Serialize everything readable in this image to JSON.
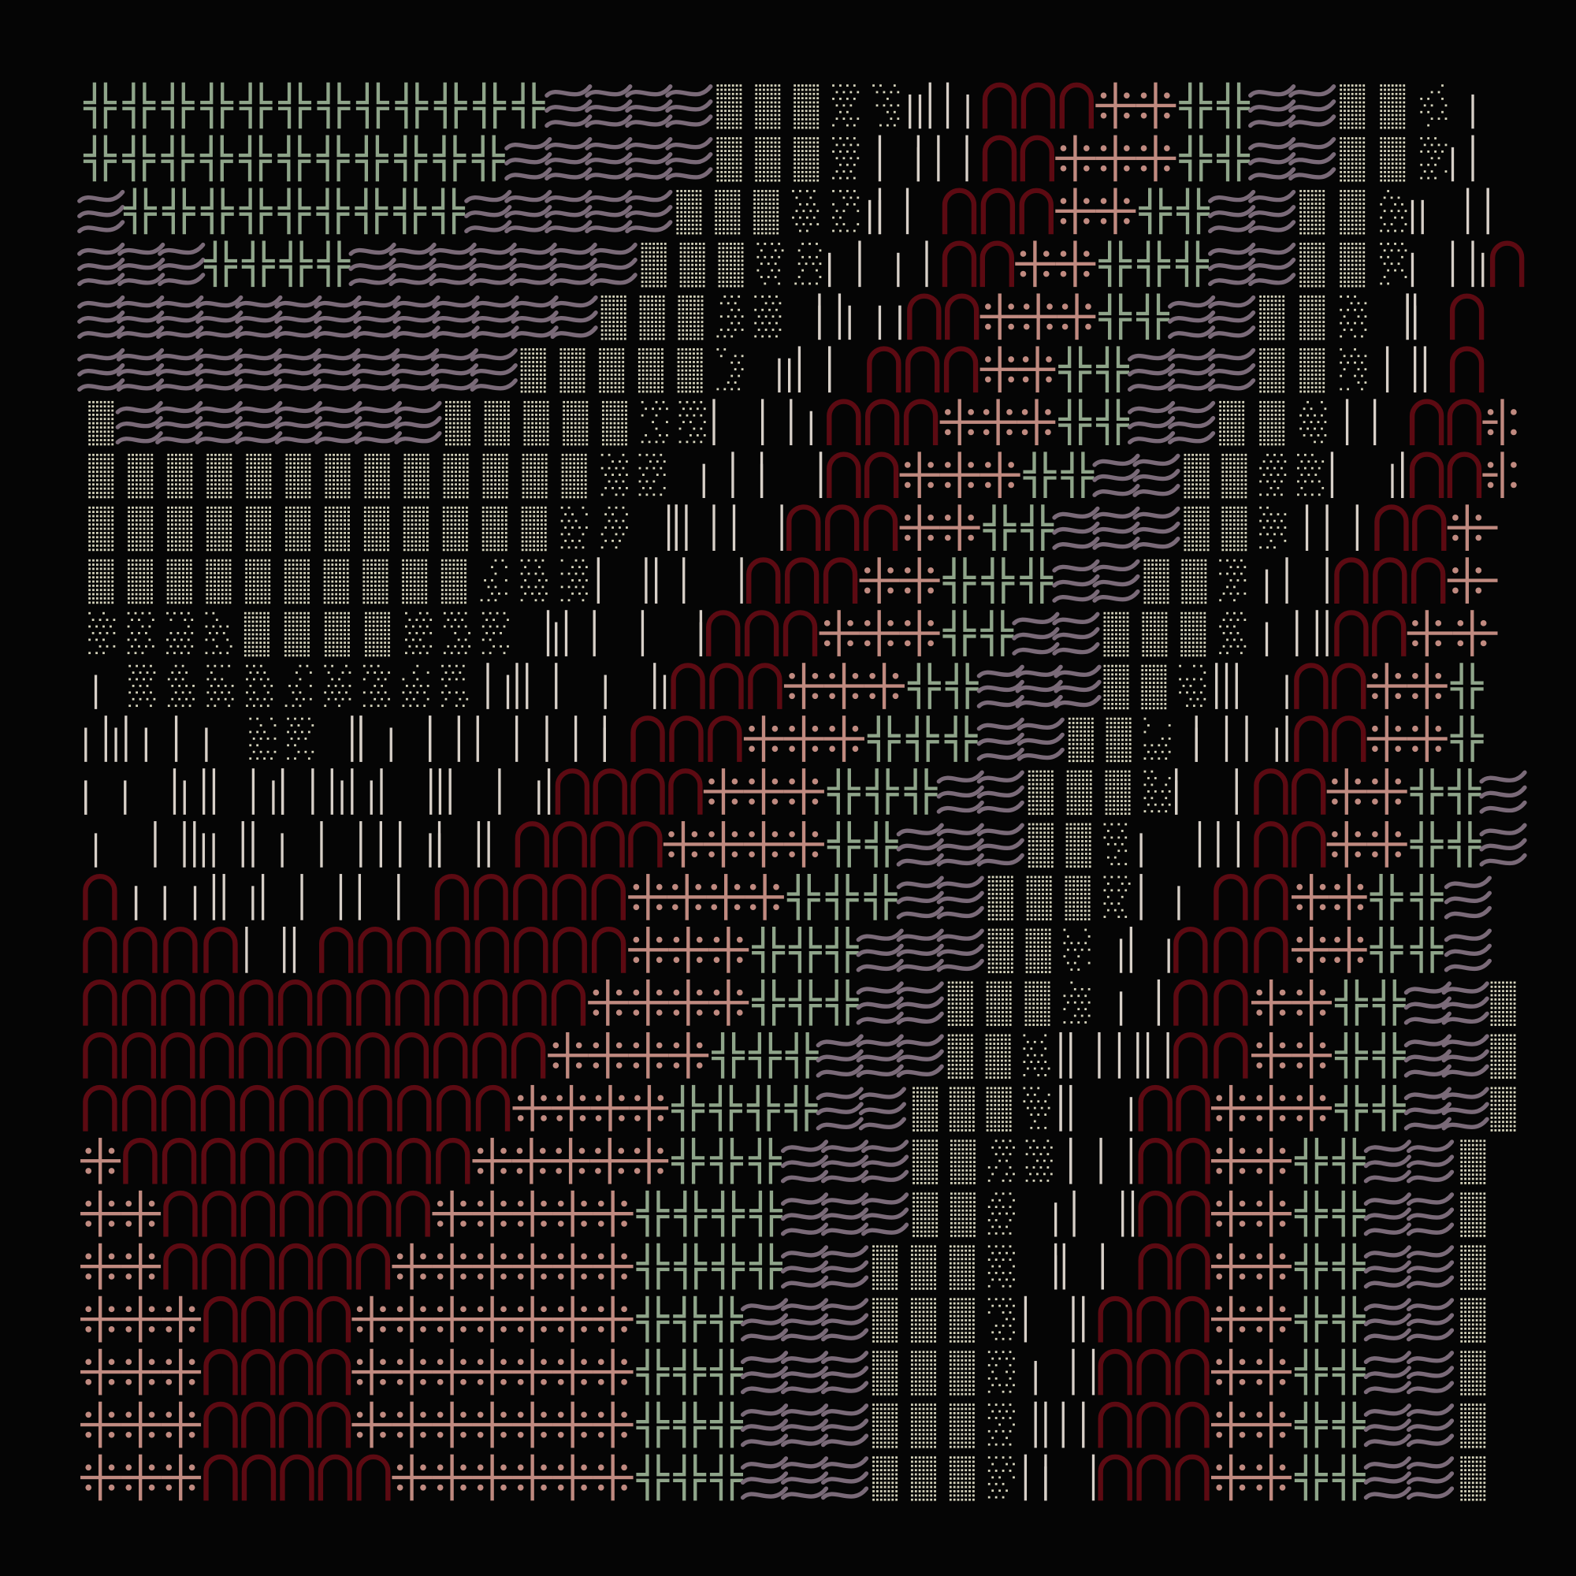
{
  "artwork": {
    "background": "#050505",
    "palette": {
      "double_cross": "#8fa58a",
      "waves": "#7a6a78",
      "dense_dots": "#d6d4bc",
      "sparse_dots": "#d6d4bc",
      "lines": "#d8d0c8",
      "arches": "#5c0a12",
      "dotted_cross": "#c08a80"
    },
    "glyphs": [
      "double-cross-icon",
      "waves-icon",
      "dense-dots-icon",
      "sparse-dots-icon",
      "vertical-lines-icon",
      "arch-icon",
      "dotted-cross-icon"
    ]
  }
}
